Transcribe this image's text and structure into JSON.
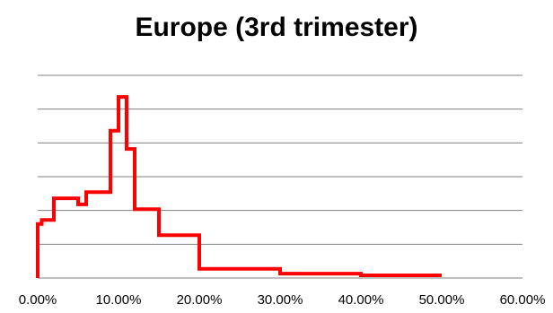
{
  "chart_data": {
    "type": "line",
    "title": "Europe (3rd trimester)",
    "xlabel": "",
    "ylabel": "",
    "xlim": [
      0,
      0.6
    ],
    "x_ticks": [
      "0.00%",
      "10.00%",
      "20.00%",
      "30.00%",
      "40.00%",
      "50.00%",
      "60.00%"
    ],
    "x_tick_values": [
      0,
      0.1,
      0.2,
      0.3,
      0.4,
      0.5,
      0.6
    ],
    "ylim": [
      0,
      6
    ],
    "y_gridlines": [
      1,
      2,
      3,
      4,
      5,
      6
    ],
    "y_tick_labels_shown": false,
    "grid": "horizontal",
    "legend": "none",
    "line_style": "step",
    "series": [
      {
        "color": "#ff0000",
        "points": [
          [
            0.0,
            0.0
          ],
          [
            0.0,
            1.6
          ],
          [
            0.005,
            1.6
          ],
          [
            0.005,
            1.72
          ],
          [
            0.02,
            1.72
          ],
          [
            0.02,
            2.36
          ],
          [
            0.05,
            2.36
          ],
          [
            0.05,
            2.18
          ],
          [
            0.06,
            2.18
          ],
          [
            0.06,
            2.54
          ],
          [
            0.09,
            2.54
          ],
          [
            0.09,
            4.36
          ],
          [
            0.1,
            4.36
          ],
          [
            0.1,
            5.36
          ],
          [
            0.11,
            5.36
          ],
          [
            0.11,
            3.82
          ],
          [
            0.12,
            3.82
          ],
          [
            0.12,
            2.04
          ],
          [
            0.15,
            2.04
          ],
          [
            0.15,
            1.27
          ],
          [
            0.2,
            1.27
          ],
          [
            0.2,
            0.27
          ],
          [
            0.3,
            0.27
          ],
          [
            0.3,
            0.13
          ],
          [
            0.4,
            0.13
          ],
          [
            0.4,
            0.08
          ],
          [
            0.5,
            0.08
          ]
        ]
      }
    ]
  }
}
